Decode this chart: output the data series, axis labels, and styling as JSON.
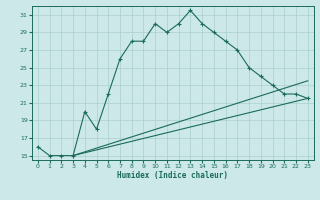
{
  "xlabel": "Humidex (Indice chaleur)",
  "ylabel": "",
  "bg_color": "#cce8e8",
  "grid_color": "#aacfcf",
  "line_color": "#1a6b5a",
  "xlim": [
    -0.5,
    23.5
  ],
  "ylim": [
    14.5,
    32
  ],
  "yticks": [
    15,
    17,
    19,
    21,
    23,
    25,
    27,
    29,
    31
  ],
  "xticks": [
    0,
    1,
    2,
    3,
    4,
    5,
    6,
    7,
    8,
    9,
    10,
    11,
    12,
    13,
    14,
    15,
    16,
    17,
    18,
    19,
    20,
    21,
    22,
    23
  ],
  "main_x": [
    0,
    1,
    2,
    3,
    4,
    5,
    6,
    7,
    8,
    9,
    10,
    11,
    12,
    13,
    14,
    15,
    16,
    17,
    18,
    19,
    20,
    21,
    22,
    23
  ],
  "main_y": [
    16,
    15,
    15,
    15,
    20,
    18,
    22,
    26,
    28,
    28,
    30,
    29,
    30,
    31.5,
    30,
    29,
    28,
    27,
    25,
    24,
    23,
    22,
    22,
    21.5
  ],
  "line2_x": [
    3,
    23
  ],
  "line2_y": [
    15,
    23.5
  ],
  "line3_x": [
    3,
    23
  ],
  "line3_y": [
    15,
    21.5
  ]
}
